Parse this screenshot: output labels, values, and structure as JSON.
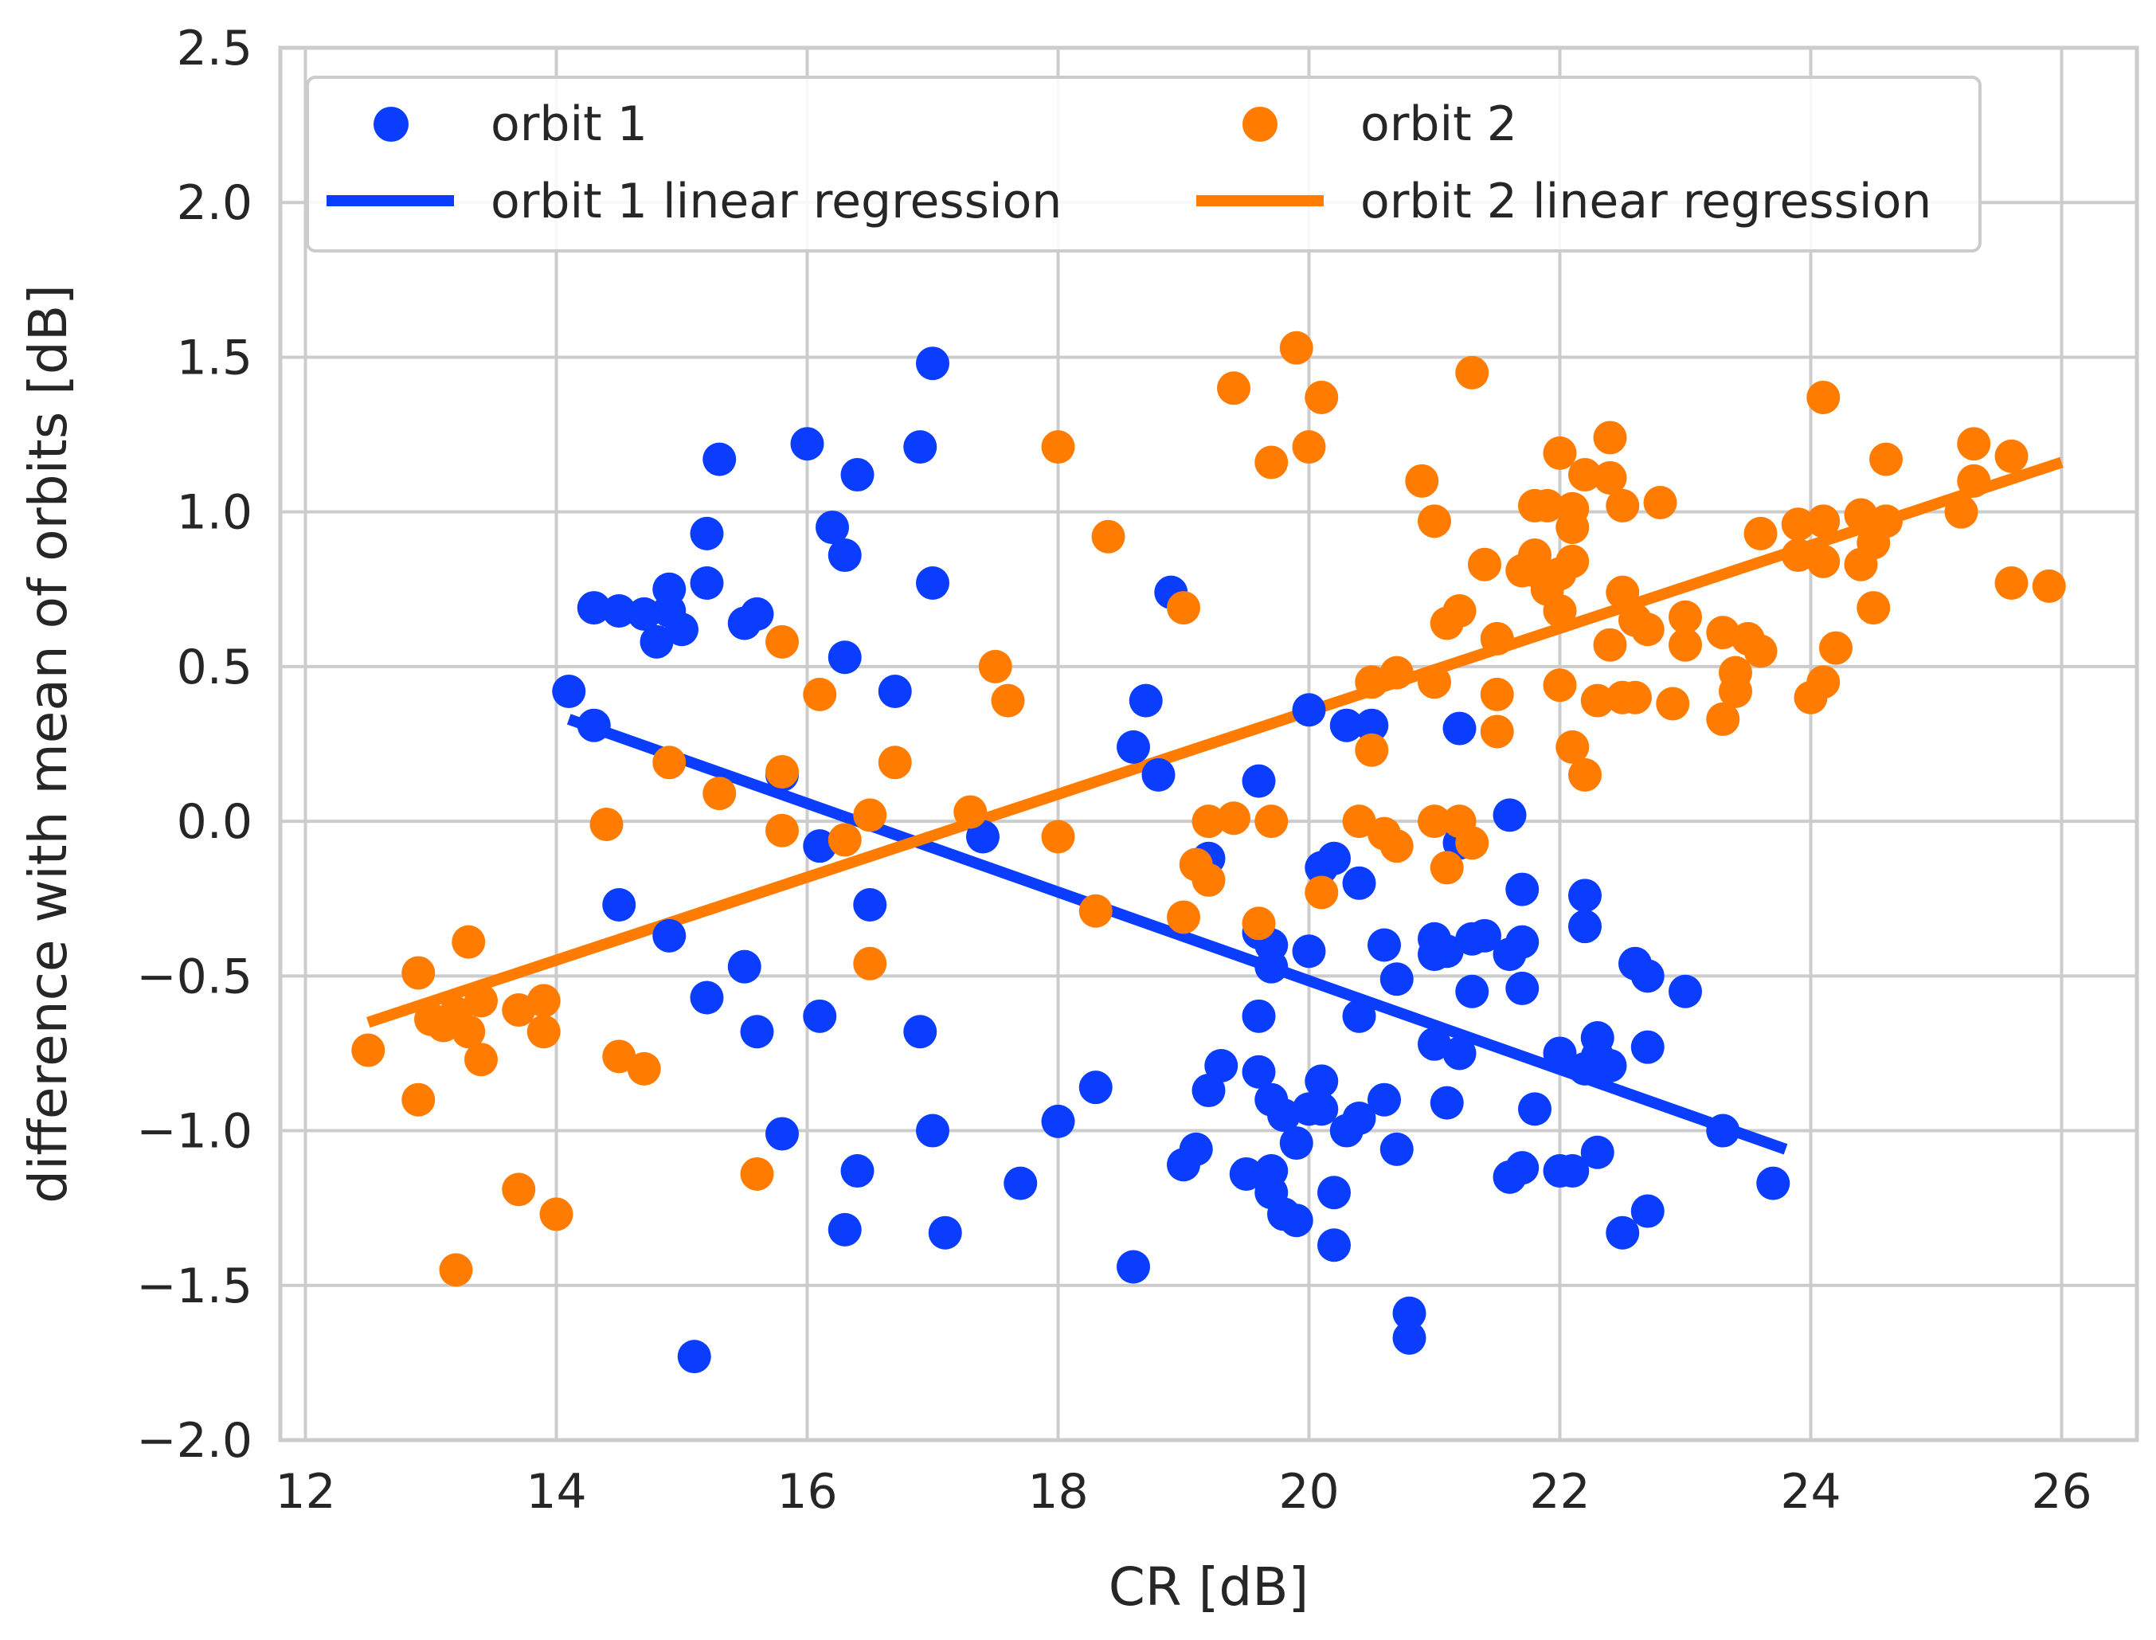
{
  "chart_data": {
    "type": "scatter",
    "title": "",
    "xlabel": "CR [dB]",
    "ylabel": "difference with mean of orbits [dB]",
    "xlim": [
      11.8,
      26.6
    ],
    "ylim": [
      -2.0,
      2.5
    ],
    "xticks": [
      12,
      14,
      16,
      18,
      20,
      22,
      24,
      26
    ],
    "yticks": [
      -2.0,
      -1.5,
      -1.0,
      -0.5,
      0.0,
      0.5,
      1.0,
      1.5,
      2.0,
      2.5
    ],
    "xtick_labels": [
      "12",
      "14",
      "16",
      "18",
      "20",
      "22",
      "24",
      "26"
    ],
    "ytick_labels": [
      "−2.0",
      "−1.5",
      "−1.0",
      "−0.5",
      "0.0",
      "0.5",
      "1.0",
      "1.5",
      "2.0",
      "2.5"
    ],
    "grid": true,
    "legend": {
      "placement": "upper, two columns",
      "entries": [
        "orbit 1",
        "orbit 2",
        "orbit 1 linear regression",
        "orbit 2 linear regression"
      ]
    },
    "colors": {
      "orbit1": "#0a3dff",
      "orbit2": "#ff7c00"
    },
    "series": [
      {
        "name": "orbit 1",
        "kind": "scatter",
        "points": [
          [
            14.1,
            0.42
          ],
          [
            14.3,
            0.31
          ],
          [
            14.3,
            0.69
          ],
          [
            14.5,
            0.68
          ],
          [
            14.7,
            0.67
          ],
          [
            14.8,
            0.58
          ],
          [
            14.9,
            0.75
          ],
          [
            14.9,
            0.68
          ],
          [
            15.0,
            0.62
          ],
          [
            15.2,
            0.93
          ],
          [
            15.2,
            0.77
          ],
          [
            15.3,
            1.17
          ],
          [
            15.5,
            0.64
          ],
          [
            15.6,
            0.67
          ],
          [
            16.0,
            1.22
          ],
          [
            16.2,
            0.95
          ],
          [
            16.3,
            0.86
          ],
          [
            16.4,
            1.12
          ],
          [
            16.3,
            0.53
          ],
          [
            16.7,
            0.42
          ],
          [
            16.9,
            1.21
          ],
          [
            17.0,
            1.48
          ],
          [
            17.0,
            0.77
          ],
          [
            15.8,
            0.15
          ],
          [
            16.1,
            -0.08
          ],
          [
            17.4,
            -0.05
          ],
          [
            14.5,
            -0.27
          ],
          [
            14.9,
            -0.37
          ],
          [
            15.2,
            -0.57
          ],
          [
            15.5,
            -0.47
          ],
          [
            15.6,
            -0.68
          ],
          [
            16.1,
            -0.63
          ],
          [
            16.5,
            -0.27
          ],
          [
            16.9,
            -0.68
          ],
          [
            15.8,
            -1.01
          ],
          [
            16.4,
            -1.13
          ],
          [
            16.3,
            -1.32
          ],
          [
            17.0,
            -1.0
          ],
          [
            17.1,
            -1.33
          ],
          [
            15.1,
            -1.73
          ],
          [
            17.7,
            -1.17
          ],
          [
            18.0,
            -0.97
          ],
          [
            18.3,
            -0.86
          ],
          [
            18.6,
            -1.44
          ],
          [
            18.6,
            0.24
          ],
          [
            18.7,
            0.39
          ],
          [
            18.8,
            0.15
          ],
          [
            18.9,
            0.74
          ],
          [
            19.2,
            -0.12
          ],
          [
            19.6,
            0.13
          ],
          [
            19.6,
            -0.36
          ],
          [
            19.7,
            -0.4
          ],
          [
            19.7,
            -0.47
          ],
          [
            19.6,
            -0.63
          ],
          [
            19.3,
            -0.79
          ],
          [
            19.2,
            -0.87
          ],
          [
            19.6,
            -0.81
          ],
          [
            19.0,
            -1.11
          ],
          [
            19.1,
            -1.06
          ],
          [
            19.5,
            -1.14
          ],
          [
            19.7,
            -0.9
          ],
          [
            19.8,
            -0.95
          ],
          [
            19.9,
            -1.04
          ],
          [
            20.0,
            -0.93
          ],
          [
            19.7,
            -1.13
          ],
          [
            19.7,
            -1.2
          ],
          [
            19.8,
            -1.27
          ],
          [
            19.9,
            -1.29
          ],
          [
            20.1,
            -0.84
          ],
          [
            20.1,
            -0.93
          ],
          [
            20.3,
            -1.0
          ],
          [
            20.4,
            -0.96
          ],
          [
            20.2,
            -1.2
          ],
          [
            20.2,
            -1.37
          ],
          [
            20.0,
            0.36
          ],
          [
            20.3,
            0.31
          ],
          [
            20.5,
            0.31
          ],
          [
            20.1,
            -0.15
          ],
          [
            20.2,
            -0.12
          ],
          [
            20.4,
            -0.2
          ],
          [
            20.0,
            -0.42
          ],
          [
            20.4,
            -0.63
          ],
          [
            20.6,
            -0.9
          ],
          [
            20.7,
            -1.06
          ],
          [
            20.6,
            -0.4
          ],
          [
            20.7,
            -0.51
          ],
          [
            21.0,
            -0.43
          ],
          [
            21.0,
            -0.38
          ],
          [
            21.1,
            -0.42
          ],
          [
            21.0,
            -0.72
          ],
          [
            21.2,
            -0.75
          ],
          [
            21.2,
            0.3
          ],
          [
            21.2,
            -0.07
          ],
          [
            21.3,
            -0.55
          ],
          [
            21.3,
            -0.38
          ],
          [
            21.4,
            -0.37
          ],
          [
            21.6,
            -0.43
          ],
          [
            21.7,
            -0.39
          ],
          [
            21.7,
            -0.54
          ],
          [
            21.6,
            0.02
          ],
          [
            21.7,
            -0.22
          ],
          [
            21.1,
            -0.91
          ],
          [
            21.8,
            -0.93
          ],
          [
            21.6,
            -1.15
          ],
          [
            21.7,
            -1.12
          ],
          [
            22.0,
            -0.75
          ],
          [
            22.0,
            -1.13
          ],
          [
            22.1,
            -1.13
          ],
          [
            22.2,
            -0.8
          ],
          [
            22.3,
            -0.76
          ],
          [
            22.3,
            -0.7
          ],
          [
            22.4,
            -0.79
          ],
          [
            22.2,
            -0.24
          ],
          [
            22.2,
            -0.34
          ],
          [
            22.3,
            -1.07
          ],
          [
            22.5,
            -1.33
          ],
          [
            22.6,
            -0.46
          ],
          [
            22.7,
            -0.5
          ],
          [
            22.7,
            -0.73
          ],
          [
            22.7,
            -1.26
          ],
          [
            23.0,
            -0.55
          ],
          [
            20.8,
            -1.59
          ],
          [
            20.8,
            -1.67
          ],
          [
            23.3,
            -1.0
          ],
          [
            23.7,
            -1.17
          ]
        ]
      },
      {
        "name": "orbit 2",
        "kind": "scatter",
        "points": [
          [
            12.5,
            -0.74
          ],
          [
            12.9,
            -0.49
          ],
          [
            12.9,
            -0.9
          ],
          [
            13.0,
            -0.64
          ],
          [
            13.1,
            -0.66
          ],
          [
            13.2,
            -0.62
          ],
          [
            13.2,
            -1.45
          ],
          [
            13.3,
            -0.39
          ],
          [
            13.3,
            -0.68
          ],
          [
            13.4,
            -0.77
          ],
          [
            13.4,
            -0.58
          ],
          [
            13.7,
            -0.61
          ],
          [
            13.7,
            -1.19
          ],
          [
            13.9,
            -0.58
          ],
          [
            13.9,
            -0.68
          ],
          [
            14.0,
            -1.27
          ],
          [
            14.4,
            -0.01
          ],
          [
            14.5,
            -0.76
          ],
          [
            14.7,
            -0.8
          ],
          [
            14.9,
            0.19
          ],
          [
            15.3,
            0.09
          ],
          [
            15.6,
            -1.14
          ],
          [
            15.8,
            0.58
          ],
          [
            15.8,
            0.16
          ],
          [
            15.8,
            -0.03
          ],
          [
            16.1,
            0.41
          ],
          [
            16.3,
            -0.06
          ],
          [
            16.5,
            0.02
          ],
          [
            16.5,
            -0.46
          ],
          [
            16.7,
            0.19
          ],
          [
            17.3,
            0.03
          ],
          [
            17.5,
            0.5
          ],
          [
            17.6,
            0.39
          ],
          [
            18.0,
            -0.05
          ],
          [
            18.0,
            1.21
          ],
          [
            18.3,
            -0.29
          ],
          [
            18.4,
            0.92
          ],
          [
            19.0,
            0.69
          ],
          [
            19.0,
            -0.31
          ],
          [
            19.1,
            -0.14
          ],
          [
            19.2,
            0.0
          ],
          [
            19.2,
            -0.19
          ],
          [
            19.4,
            0.01
          ],
          [
            19.4,
            1.4
          ],
          [
            19.6,
            -0.33
          ],
          [
            19.7,
            0.0
          ],
          [
            19.7,
            1.16
          ],
          [
            19.9,
            1.53
          ],
          [
            20.0,
            1.21
          ],
          [
            20.1,
            1.37
          ],
          [
            20.1,
            -0.23
          ],
          [
            20.4,
            0.0
          ],
          [
            20.5,
            0.45
          ],
          [
            20.5,
            0.23
          ],
          [
            20.6,
            -0.04
          ],
          [
            20.7,
            -0.08
          ],
          [
            20.7,
            0.48
          ],
          [
            20.9,
            1.1
          ],
          [
            21.0,
            0.97
          ],
          [
            21.0,
            0.0
          ],
          [
            21.0,
            0.45
          ],
          [
            21.1,
            -0.15
          ],
          [
            21.1,
            0.64
          ],
          [
            21.2,
            0.68
          ],
          [
            21.2,
            0.0
          ],
          [
            21.3,
            1.45
          ],
          [
            21.3,
            -0.07
          ],
          [
            21.4,
            0.83
          ],
          [
            21.5,
            0.59
          ],
          [
            21.5,
            0.41
          ],
          [
            21.5,
            0.29
          ],
          [
            21.7,
            0.81
          ],
          [
            21.8,
            1.02
          ],
          [
            21.8,
            0.86
          ],
          [
            21.8,
            0.81
          ],
          [
            21.9,
            1.02
          ],
          [
            21.9,
            0.75
          ],
          [
            22.0,
            1.19
          ],
          [
            22.0,
            0.8
          ],
          [
            22.0,
            0.68
          ],
          [
            22.0,
            0.44
          ],
          [
            22.1,
            1.01
          ],
          [
            22.1,
            0.95
          ],
          [
            22.1,
            0.84
          ],
          [
            22.1,
            0.24
          ],
          [
            22.2,
            1.12
          ],
          [
            22.2,
            0.15
          ],
          [
            22.3,
            0.39
          ],
          [
            22.4,
            1.11
          ],
          [
            22.4,
            0.57
          ],
          [
            22.4,
            1.24
          ],
          [
            22.5,
            1.02
          ],
          [
            22.5,
            0.74
          ],
          [
            22.5,
            0.4
          ],
          [
            22.6,
            0.65
          ],
          [
            22.6,
            0.4
          ],
          [
            22.7,
            0.62
          ],
          [
            22.8,
            1.03
          ],
          [
            22.9,
            0.38
          ],
          [
            23.0,
            0.66
          ],
          [
            23.0,
            0.57
          ],
          [
            23.3,
            0.61
          ],
          [
            23.3,
            0.33
          ],
          [
            23.4,
            0.48
          ],
          [
            23.4,
            0.42
          ],
          [
            23.5,
            0.59
          ],
          [
            23.6,
            0.55
          ],
          [
            23.6,
            0.93
          ],
          [
            23.9,
            0.86
          ],
          [
            23.9,
            0.96
          ],
          [
            24.0,
            0.4
          ],
          [
            24.1,
            0.45
          ],
          [
            24.1,
            0.84
          ],
          [
            24.1,
            0.97
          ],
          [
            24.2,
            0.56
          ],
          [
            24.1,
            1.37
          ],
          [
            24.4,
            0.83
          ],
          [
            24.4,
            0.99
          ],
          [
            24.5,
            0.9
          ],
          [
            24.5,
            0.69
          ],
          [
            24.6,
            0.97
          ],
          [
            24.6,
            1.17
          ],
          [
            25.2,
            1.0
          ],
          [
            25.3,
            1.1
          ],
          [
            25.3,
            1.22
          ],
          [
            25.6,
            0.77
          ],
          [
            25.6,
            1.18
          ],
          [
            25.9,
            0.76
          ]
        ]
      },
      {
        "name": "orbit 1 linear regression",
        "kind": "line",
        "x": [
          14.1,
          23.8
        ],
        "y": [
          0.33,
          -1.06
        ]
      },
      {
        "name": "orbit 2 linear regression",
        "kind": "line",
        "x": [
          12.5,
          26.0
        ],
        "y": [
          -0.65,
          1.16
        ]
      }
    ]
  }
}
